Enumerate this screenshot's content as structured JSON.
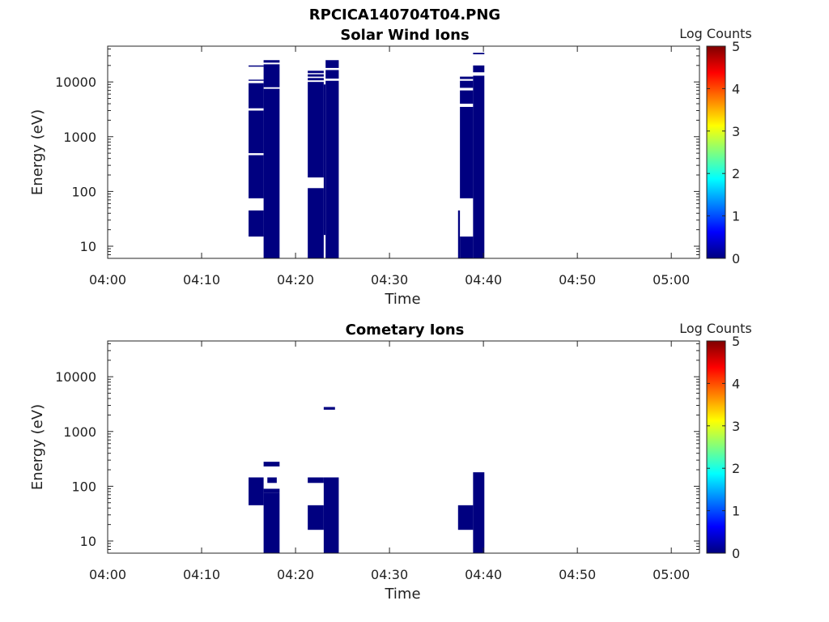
{
  "figure_title": "RPCICA140704T04.PNG",
  "colors": {
    "data_fill": "#000080",
    "colormap": [
      "#00007f",
      "#0000ff",
      "#007fff",
      "#00ffff",
      "#7fff7f",
      "#ffff00",
      "#ff7f00",
      "#ff0000",
      "#7f0000"
    ]
  },
  "chart_data": [
    {
      "type": "heatmap",
      "title": "Solar Wind Ions",
      "xlabel": "Time",
      "ylabel": "Energy (eV)",
      "y_scale": "log",
      "xlim": [
        "04:00",
        "05:03"
      ],
      "ylim": [
        6,
        45000
      ],
      "x_ticks": [
        "04:00",
        "04:10",
        "04:20",
        "04:30",
        "04:40",
        "04:50",
        "05:00"
      ],
      "y_ticks": [
        "10",
        "100",
        "1000",
        "10000"
      ],
      "colorbar": {
        "label": "Log Counts",
        "range": [
          0,
          5
        ],
        "ticks": [
          "0",
          "1",
          "2",
          "3",
          "4",
          "5"
        ]
      },
      "cells": [
        {
          "t0": "04:15",
          "t1": "04:16.6",
          "e_min": 15,
          "e_max": 45,
          "log_counts": 0
        },
        {
          "t0": "04:15",
          "t1": "04:16.6",
          "e_min": 75,
          "e_max": 460,
          "log_counts": 0
        },
        {
          "t0": "04:15",
          "t1": "04:16.6",
          "e_min": 500,
          "e_max": 3000,
          "log_counts": 0
        },
        {
          "t0": "04:15",
          "t1": "04:16.6",
          "e_min": 3300,
          "e_max": 9500,
          "log_counts": 0
        },
        {
          "t0": "04:15",
          "t1": "04:16.6",
          "e_min": 10500,
          "e_max": 11000,
          "log_counts": 0
        },
        {
          "t0": "04:15",
          "t1": "04:16.6",
          "e_min": 19000,
          "e_max": 20000,
          "log_counts": 0
        },
        {
          "t0": "04:16.6",
          "t1": "04:18.3",
          "e_min": 6,
          "e_max": 7500,
          "log_counts": 0
        },
        {
          "t0": "04:16.6",
          "t1": "04:18.3",
          "e_min": 8000,
          "e_max": 21000,
          "log_counts": 0
        },
        {
          "t0": "04:16.6",
          "t1": "04:18.3",
          "e_min": 22500,
          "e_max": 25000,
          "log_counts": 0
        },
        {
          "t0": "04:21.3",
          "t1": "04:23",
          "e_min": 6,
          "e_max": 115,
          "log_counts": 0
        },
        {
          "t0": "04:21.3",
          "t1": "04:23",
          "e_min": 180,
          "e_max": 10000,
          "log_counts": 0
        },
        {
          "t0": "04:21.3",
          "t1": "04:23",
          "e_min": 10700,
          "e_max": 11800,
          "log_counts": 0
        },
        {
          "t0": "04:21.3",
          "t1": "04:23",
          "e_min": 12500,
          "e_max": 13800,
          "log_counts": 0
        },
        {
          "t0": "04:21.3",
          "t1": "04:23",
          "e_min": 14500,
          "e_max": 16000,
          "log_counts": 0
        },
        {
          "t0": "04:23",
          "t1": "04:23.2",
          "e_min": 16,
          "e_max": 9000,
          "log_counts": 0
        },
        {
          "t0": "04:23.2",
          "t1": "04:24.6",
          "e_min": 6,
          "e_max": 10500,
          "log_counts": 0
        },
        {
          "t0": "04:23.2",
          "t1": "04:24.6",
          "e_min": 11500,
          "e_max": 16500,
          "log_counts": 0
        },
        {
          "t0": "04:23.2",
          "t1": "04:24.6",
          "e_min": 18000,
          "e_max": 25000,
          "log_counts": 0
        },
        {
          "t0": "04:37.3",
          "t1": "04:37.5",
          "e_min": 6,
          "e_max": 45,
          "log_counts": 0
        },
        {
          "t0": "04:37.5",
          "t1": "04:38.9",
          "e_min": 6,
          "e_max": 15,
          "log_counts": 0
        },
        {
          "t0": "04:37.5",
          "t1": "04:38.9",
          "e_min": 75,
          "e_max": 3500,
          "log_counts": 0
        },
        {
          "t0": "04:37.5",
          "t1": "04:38.9",
          "e_min": 4000,
          "e_max": 7000,
          "log_counts": 0
        },
        {
          "t0": "04:37.5",
          "t1": "04:38.9",
          "e_min": 7800,
          "e_max": 10500,
          "log_counts": 0
        },
        {
          "t0": "04:37.5",
          "t1": "04:38.9",
          "e_min": 11300,
          "e_max": 12500,
          "log_counts": 0
        },
        {
          "t0": "04:38.9",
          "t1": "04:40.1",
          "e_min": 6,
          "e_max": 13000,
          "log_counts": 0
        },
        {
          "t0": "04:38.9",
          "t1": "04:40.1",
          "e_min": 15000,
          "e_max": 20000,
          "log_counts": 0
        },
        {
          "t0": "04:38.9",
          "t1": "04:40.1",
          "e_min": 32000,
          "e_max": 34000,
          "log_counts": 0
        }
      ]
    },
    {
      "type": "heatmap",
      "title": "Cometary Ions",
      "xlabel": "Time",
      "ylabel": "Energy (eV)",
      "y_scale": "log",
      "xlim": [
        "04:00",
        "05:03"
      ],
      "ylim": [
        6,
        45000
      ],
      "x_ticks": [
        "04:00",
        "04:10",
        "04:20",
        "04:30",
        "04:40",
        "04:50",
        "05:00"
      ],
      "y_ticks": [
        "10",
        "100",
        "1000",
        "10000"
      ],
      "colorbar": {
        "label": "Log Counts",
        "range": [
          0,
          5
        ],
        "ticks": [
          "0",
          "1",
          "2",
          "3",
          "4",
          "5"
        ]
      },
      "cells": [
        {
          "t0": "04:15",
          "t1": "04:16.6",
          "e_min": 45,
          "e_max": 145,
          "log_counts": 0
        },
        {
          "t0": "04:16.6",
          "t1": "04:18.3",
          "e_min": 6,
          "e_max": 75,
          "log_counts": 0
        },
        {
          "t0": "04:16.6",
          "t1": "04:18.3",
          "e_min": 75,
          "e_max": 90,
          "log_counts": 0
        },
        {
          "t0": "04:17",
          "t1": "04:18",
          "e_min": 115,
          "e_max": 145,
          "log_counts": 0
        },
        {
          "t0": "04:16.6",
          "t1": "04:18.3",
          "e_min": 230,
          "e_max": 280,
          "log_counts": 0
        },
        {
          "t0": "04:21.3",
          "t1": "04:23",
          "e_min": 16,
          "e_max": 45,
          "log_counts": 0
        },
        {
          "t0": "04:21.3",
          "t1": "04:23",
          "e_min": 115,
          "e_max": 145,
          "log_counts": 0
        },
        {
          "t0": "04:23",
          "t1": "04:24.6",
          "e_min": 6,
          "e_max": 145,
          "log_counts": 0
        },
        {
          "t0": "04:23",
          "t1": "04:24.2",
          "e_min": 2500,
          "e_max": 2800,
          "log_counts": 0
        },
        {
          "t0": "04:37.3",
          "t1": "04:38.9",
          "e_min": 16,
          "e_max": 45,
          "log_counts": 0
        },
        {
          "t0": "04:38.9",
          "t1": "04:40.1",
          "e_min": 6,
          "e_max": 180,
          "log_counts": 0
        }
      ]
    }
  ]
}
